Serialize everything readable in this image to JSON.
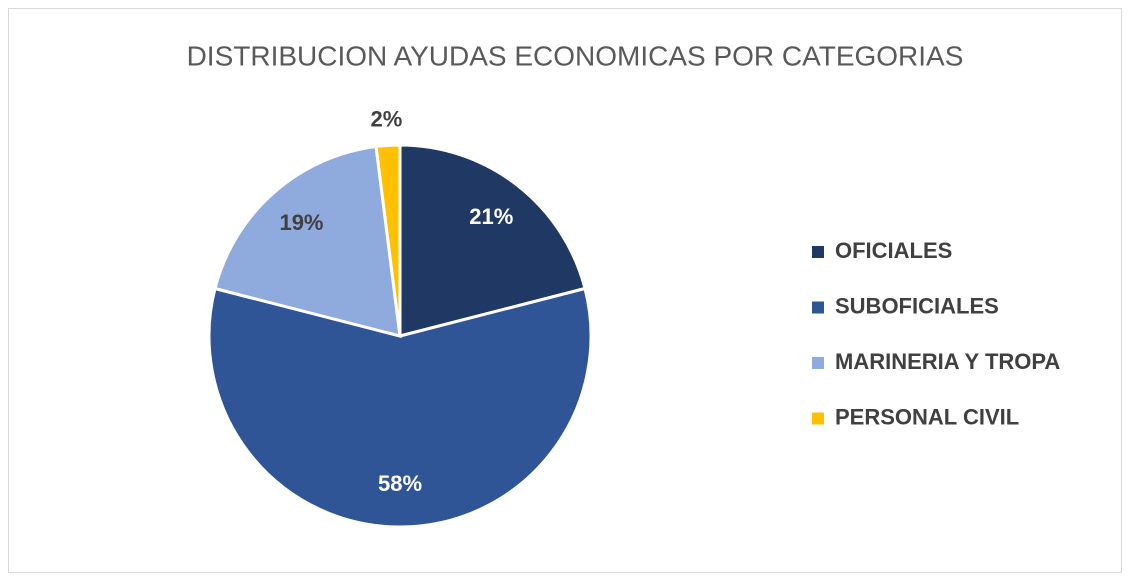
{
  "chart_data": {
    "type": "pie",
    "title": "DISTRIBUCION AYUDAS ECONOMICAS POR CATEGORIAS",
    "categories": [
      "OFICIALES",
      "SUBOFICIALES",
      "MARINERIA Y TROPA",
      "PERSONAL CIVIL"
    ],
    "values": [
      21,
      58,
      19,
      2
    ],
    "value_labels": [
      "21%",
      "58%",
      "19%",
      "2%"
    ],
    "colors": [
      "#203864",
      "#2f5597",
      "#8faadc",
      "#ffc000"
    ],
    "legend": "right"
  }
}
